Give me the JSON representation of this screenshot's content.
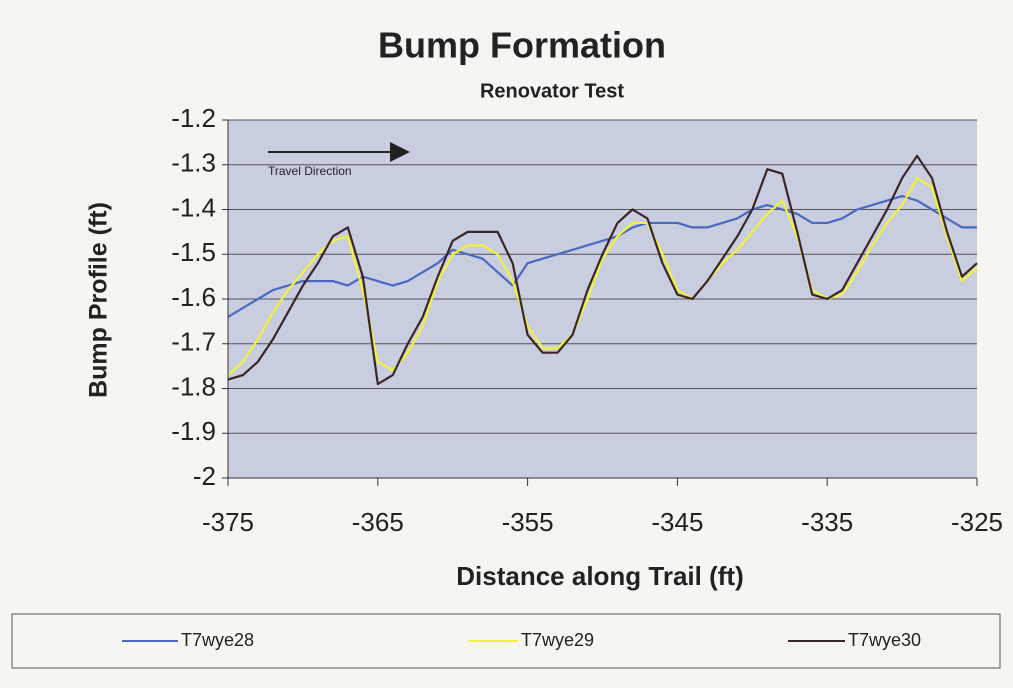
{
  "chart_data": {
    "type": "line",
    "title": "Bump Formation",
    "subtitle": "Renovator Test",
    "x_label": "Distance along Trail (ft)",
    "y_label": "Bump Profile (ft)",
    "annotation": "Travel Direction",
    "x": [
      -375,
      -374,
      -373,
      -372,
      -371,
      -370,
      -369,
      -368,
      -367,
      -366,
      -365,
      -364,
      -363,
      -362,
      -361,
      -360,
      -359,
      -358,
      -357,
      -356,
      -355,
      -354,
      -353,
      -352,
      -351,
      -350,
      -349,
      -348,
      -347,
      -346,
      -345,
      -344,
      -343,
      -342,
      -341,
      -340,
      -339,
      -338,
      -337,
      -336,
      -335,
      -334,
      -333,
      -332,
      -331,
      -330,
      -329,
      -328,
      -327,
      -326,
      -325
    ],
    "series": [
      {
        "name": "T7wye28",
        "color": "#4a68c0",
        "values": [
          -1.64,
          -1.62,
          -1.6,
          -1.58,
          -1.57,
          -1.56,
          -1.56,
          -1.56,
          -1.57,
          -1.55,
          -1.56,
          -1.57,
          -1.56,
          -1.54,
          -1.52,
          -1.49,
          -1.5,
          -1.51,
          -1.54,
          -1.57,
          -1.52,
          -1.51,
          -1.5,
          -1.49,
          -1.48,
          -1.47,
          -1.46,
          -1.44,
          -1.43,
          -1.43,
          -1.43,
          -1.44,
          -1.44,
          -1.43,
          -1.42,
          -1.4,
          -1.39,
          -1.4,
          -1.41,
          -1.43,
          -1.43,
          -1.42,
          -1.4,
          -1.39,
          -1.38,
          -1.37,
          -1.38,
          -1.4,
          -1.42,
          -1.44,
          -1.44
        ]
      },
      {
        "name": "T7wye29",
        "color": "#f2f23a",
        "values": [
          -1.77,
          -1.74,
          -1.69,
          -1.63,
          -1.58,
          -1.54,
          -1.5,
          -1.47,
          -1.46,
          -1.58,
          -1.74,
          -1.76,
          -1.72,
          -1.66,
          -1.56,
          -1.5,
          -1.48,
          -1.48,
          -1.5,
          -1.56,
          -1.66,
          -1.71,
          -1.71,
          -1.68,
          -1.6,
          -1.51,
          -1.46,
          -1.43,
          -1.43,
          -1.5,
          -1.58,
          -1.6,
          -1.56,
          -1.52,
          -1.49,
          -1.45,
          -1.41,
          -1.38,
          -1.46,
          -1.58,
          -1.6,
          -1.59,
          -1.54,
          -1.48,
          -1.43,
          -1.39,
          -1.33,
          -1.35,
          -1.46,
          -1.56,
          -1.53
        ]
      },
      {
        "name": "T7wye30",
        "color": "#3a2626",
        "values": [
          -1.78,
          -1.77,
          -1.74,
          -1.69,
          -1.63,
          -1.57,
          -1.52,
          -1.46,
          -1.44,
          -1.55,
          -1.79,
          -1.77,
          -1.7,
          -1.64,
          -1.55,
          -1.47,
          -1.45,
          -1.45,
          -1.45,
          -1.52,
          -1.68,
          -1.72,
          -1.72,
          -1.68,
          -1.58,
          -1.5,
          -1.43,
          -1.4,
          -1.42,
          -1.52,
          -1.59,
          -1.6,
          -1.56,
          -1.51,
          -1.46,
          -1.4,
          -1.31,
          -1.32,
          -1.45,
          -1.59,
          -1.6,
          -1.58,
          -1.52,
          -1.46,
          -1.4,
          -1.33,
          -1.28,
          -1.33,
          -1.45,
          -1.55,
          -1.52
        ]
      }
    ],
    "xlim": [
      -375,
      -325
    ],
    "xticks": [
      -375,
      -365,
      -355,
      -345,
      -335,
      -325
    ],
    "ylim": [
      -2,
      -1.2
    ],
    "yticks": [
      -1.2,
      -1.3,
      -1.4,
      -1.5,
      -1.6,
      -1.7,
      -1.8,
      -1.9,
      -2
    ],
    "grid": true,
    "legend": "bottom"
  }
}
